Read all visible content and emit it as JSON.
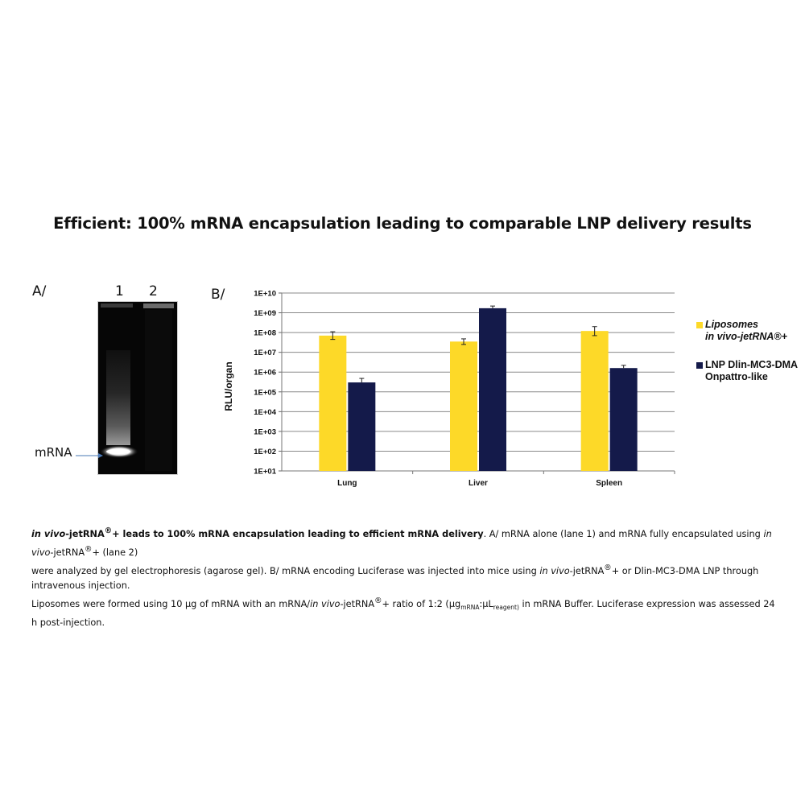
{
  "title": "Efficient:  100% mRNA encapsulation leading to comparable LNP delivery results",
  "panel_a": {
    "label": "A/",
    "lane_labels": [
      "1",
      "2"
    ],
    "band_label": "mRNA"
  },
  "panel_b": {
    "label": "B/"
  },
  "colors": {
    "liposomes": "#FDD928",
    "lnp": "#141A4A",
    "grid": "#8A8A8A"
  },
  "chart_data": {
    "type": "bar",
    "title": "",
    "xlabel": "",
    "ylabel": "RLU/organ",
    "yscale": "log",
    "ylim": [
      10,
      10000000000
    ],
    "yticks": [
      "1E+01",
      "1E+02",
      "1E+03",
      "1E+04",
      "1E+05",
      "1E+06",
      "1E+07",
      "1E+08",
      "1E+09",
      "1E+10"
    ],
    "categories": [
      "Lung",
      "Liver",
      "Spleen"
    ],
    "series": [
      {
        "name_line1": "Liposomes",
        "name_line2": "in vivo-jetRNA®+",
        "values": [
          70000000,
          35000000,
          120000000
        ],
        "errors_upper": [
          110000000,
          48000000,
          200000000
        ],
        "errors_lower": [
          45000000,
          25000000,
          70000000
        ]
      },
      {
        "name_line1": "LNP Dlin-MC3-DMA",
        "name_line2": "Onpattro-like",
        "values": [
          300000,
          1700000000,
          1600000
        ],
        "errors_upper": [
          480000,
          2200000000,
          2200000
        ],
        "errors_lower": [
          300000,
          1700000000,
          1600000
        ]
      }
    ],
    "grid": true,
    "legend_position": "right"
  },
  "caption": {
    "line1_bold_a": "in vivo",
    "line1_bold_b": "-jetRNA",
    "line1_bold_sup": "®",
    "line1_bold_c": "+ leads to 100% mRNA encapsulation leading to efficient mRNA delivery",
    "line1_rest_a": ". A/ mRNA alone (lane 1) and mRNA fully encapsulated using ",
    "line1_rest_italic": "in vivo",
    "line1_rest_b": "-jetRNA",
    "line1_rest_sup": "®",
    "line1_rest_c": "+ (lane 2)",
    "line2_a": "were analyzed by gel electrophoresis (agarose gel). B/ mRNA encoding Luciferase was injected into mice using ",
    "line2_italic": "in vivo",
    "line2_b": "-jetRNA",
    "line2_sup": "®",
    "line2_c": "+ or Dlin-MC3-DMA LNP through  intravenous injection.",
    "line3_a": "Liposomes were formed using 10 µg of mRNA with an mRNA/",
    "line3_italic": "in vivo",
    "line3_b": "-jetRNA",
    "line3_sup": "®",
    "line3_c": "+ ratio of 1:2 (µg",
    "line3_sub1": "mRNA",
    "line3_d": ":µL",
    "line3_sub2": "reagent)",
    "line3_e": " in mRNA Buffer. Luciferase expression was assessed 24 h post-injection."
  }
}
